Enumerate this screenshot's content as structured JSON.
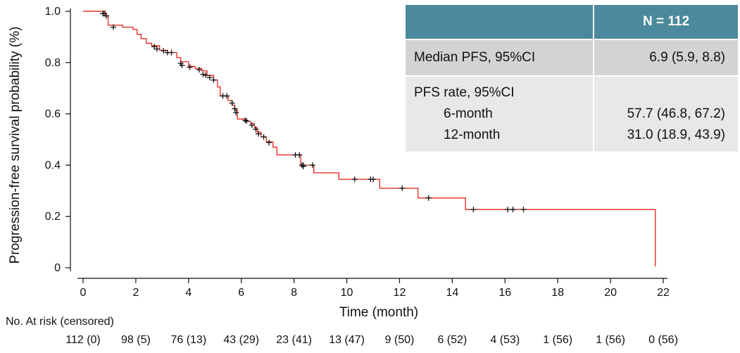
{
  "chart_data": {
    "type": "line",
    "title": "",
    "xlabel": "Time (month)",
    "ylabel": "Progression-free survival probability (%)",
    "xlim": [
      0,
      22
    ],
    "ylim": [
      0,
      1
    ],
    "xticks": [
      "0",
      "2",
      "4",
      "6",
      "8",
      "10",
      "12",
      "14",
      "16",
      "18",
      "20",
      "22"
    ],
    "yticks": [
      "0",
      "0.2",
      "0.4",
      "0.6",
      "0.8",
      "1.0"
    ],
    "grid": false,
    "line_color": "#e8322b",
    "censor_color": "#111111",
    "steps": [
      [
        0,
        1.0
      ],
      [
        0.85,
        0.982
      ],
      [
        0.95,
        0.946
      ],
      [
        1.5,
        0.938
      ],
      [
        1.9,
        0.929
      ],
      [
        2.05,
        0.91
      ],
      [
        2.2,
        0.893
      ],
      [
        2.4,
        0.875
      ],
      [
        2.6,
        0.866
      ],
      [
        2.9,
        0.848
      ],
      [
        3.2,
        0.839
      ],
      [
        3.55,
        0.82
      ],
      [
        3.7,
        0.803
      ],
      [
        4.0,
        0.785
      ],
      [
        4.25,
        0.777
      ],
      [
        4.5,
        0.768
      ],
      [
        4.7,
        0.75
      ],
      [
        4.95,
        0.732
      ],
      [
        5.1,
        0.705
      ],
      [
        5.2,
        0.67
      ],
      [
        5.5,
        0.652
      ],
      [
        5.65,
        0.634
      ],
      [
        5.75,
        0.616
      ],
      [
        5.85,
        0.58
      ],
      [
        6.05,
        0.58
      ],
      [
        6.15,
        0.571
      ],
      [
        6.35,
        0.562
      ],
      [
        6.5,
        0.546
      ],
      [
        6.6,
        0.528
      ],
      [
        6.75,
        0.51
      ],
      [
        6.95,
        0.491
      ],
      [
        7.2,
        0.47
      ],
      [
        7.35,
        0.44
      ],
      [
        8.25,
        0.4
      ],
      [
        8.75,
        0.37
      ],
      [
        9.7,
        0.345
      ],
      [
        11.25,
        0.31
      ],
      [
        12.7,
        0.272
      ],
      [
        14.5,
        0.227
      ],
      [
        21.7,
        0.227
      ],
      [
        21.7,
        0.005
      ]
    ],
    "censored": [
      [
        0.75,
        0.991
      ],
      [
        0.8,
        0.991
      ],
      [
        0.88,
        0.982
      ],
      [
        1.15,
        0.938
      ],
      [
        2.7,
        0.862
      ],
      [
        2.8,
        0.853
      ],
      [
        3.05,
        0.846
      ],
      [
        3.2,
        0.839
      ],
      [
        3.35,
        0.839
      ],
      [
        3.7,
        0.797
      ],
      [
        3.75,
        0.789
      ],
      [
        4.05,
        0.782
      ],
      [
        4.4,
        0.772
      ],
      [
        4.55,
        0.754
      ],
      [
        4.65,
        0.751
      ],
      [
        4.8,
        0.742
      ],
      [
        4.95,
        0.732
      ],
      [
        5.3,
        0.67
      ],
      [
        5.45,
        0.67
      ],
      [
        5.65,
        0.642
      ],
      [
        5.75,
        0.62
      ],
      [
        5.8,
        0.605
      ],
      [
        6.15,
        0.575
      ],
      [
        6.2,
        0.572
      ],
      [
        6.4,
        0.556
      ],
      [
        6.55,
        0.54
      ],
      [
        6.65,
        0.522
      ],
      [
        6.85,
        0.51
      ],
      [
        7.05,
        0.488
      ],
      [
        8.05,
        0.44
      ],
      [
        8.2,
        0.44
      ],
      [
        8.3,
        0.4
      ],
      [
        8.35,
        0.4
      ],
      [
        8.35,
        0.395
      ],
      [
        8.7,
        0.4
      ],
      [
        10.3,
        0.345
      ],
      [
        10.9,
        0.345
      ],
      [
        11.0,
        0.345
      ],
      [
        12.1,
        0.31
      ],
      [
        13.1,
        0.272
      ],
      [
        14.8,
        0.227
      ],
      [
        16.1,
        0.227
      ],
      [
        16.3,
        0.227
      ],
      [
        16.7,
        0.227
      ]
    ],
    "risk_table": {
      "label": "No. At risk (censored)",
      "x": [
        0,
        2,
        4,
        6,
        8,
        10,
        12,
        14,
        16,
        18,
        20,
        22
      ],
      "values": [
        "112 (0)",
        "98 (5)",
        "76 (13)",
        "43 (29)",
        "23 (41)",
        "13 (47)",
        "9 (50)",
        "6 (52)",
        "4 (53)",
        "1 (56)",
        "1 (56)",
        "0 (56)"
      ]
    },
    "legend_table": {
      "header_value": "N = 112",
      "median_label": "Median PFS, 95%CI",
      "median_value": "6.9 (5.9, 8.8)",
      "rate_label": "PFS rate, 95%CI",
      "rate_6_label": "6-month",
      "rate_6_value": "57.7 (46.8, 67.2)",
      "rate_12_label": "12-month",
      "rate_12_value": "31.0 (18.9, 43.9)",
      "header_color": "#4a8a9c",
      "row1_color": "#d3d3d5",
      "row2_color": "#e8e8ea"
    }
  }
}
